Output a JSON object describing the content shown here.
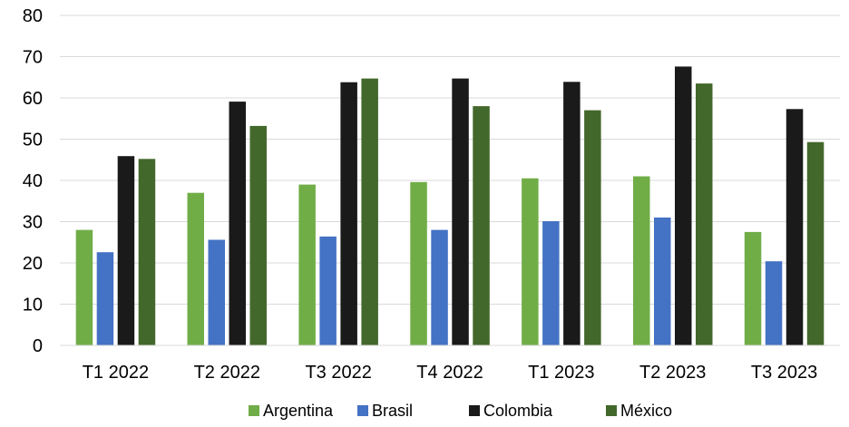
{
  "chart_data": {
    "type": "bar",
    "categories": [
      "T1 2022",
      "T2 2022",
      "T3 2022",
      "T4 2022",
      "T1 2023",
      "T2 2023",
      "T3 2023"
    ],
    "series": [
      {
        "name": "Argentina",
        "color": "#70ad47",
        "values": [
          28,
          37,
          39,
          39.6,
          40.5,
          41,
          27.5
        ]
      },
      {
        "name": "Brasil",
        "color": "#4472c4",
        "values": [
          22.6,
          25.6,
          26.4,
          28,
          30.1,
          31,
          20.4
        ]
      },
      {
        "name": "Colombia",
        "color": "#1a1a1a",
        "values": [
          45.9,
          59.1,
          63.8,
          64.7,
          63.9,
          67.6,
          57.3
        ]
      },
      {
        "name": "México",
        "color": "#43682b",
        "values": [
          45.2,
          53.2,
          64.7,
          58,
          57,
          63.5,
          49.3
        ]
      }
    ],
    "yticks": [
      0,
      10,
      20,
      30,
      40,
      50,
      60,
      70,
      80
    ],
    "ylim": [
      0,
      80
    ],
    "grid": true,
    "legend_position": "bottom",
    "title": "",
    "xlabel": "",
    "ylabel": ""
  }
}
